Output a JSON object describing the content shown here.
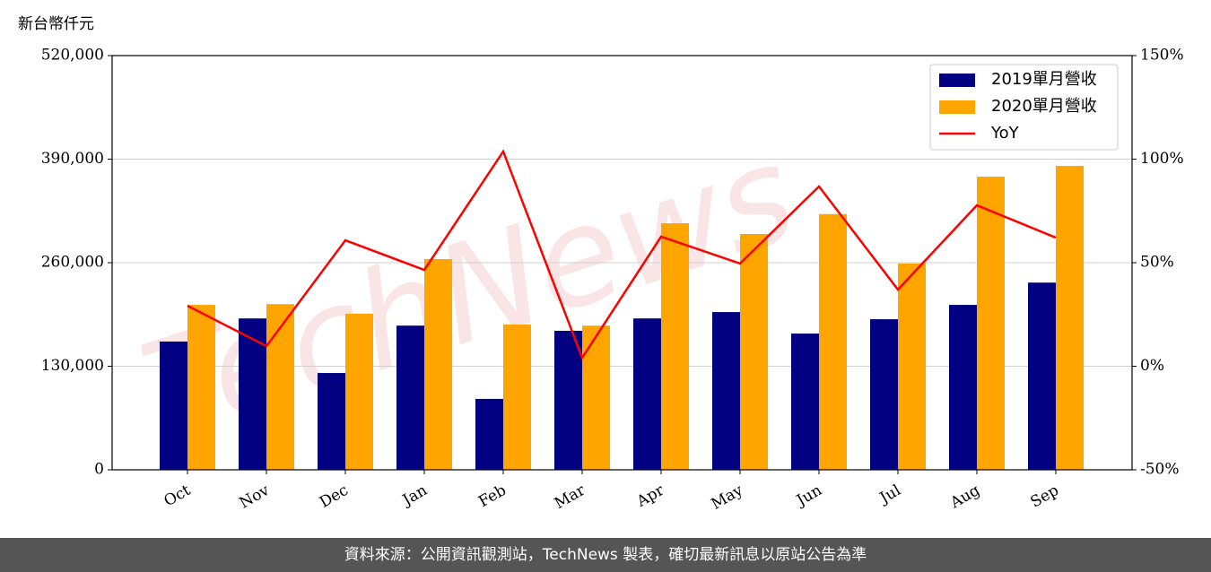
{
  "chart_data": {
    "type": "bar_line",
    "y_axis_label": "新台幣仟元",
    "categories": [
      "Oct",
      "Nov",
      "Dec",
      "Jan",
      "Feb",
      "Mar",
      "Apr",
      "May",
      "Jun",
      "Jul",
      "Aug",
      "Sep"
    ],
    "series": [
      {
        "name": "2019單月營收",
        "color": "#000080",
        "type": "bar",
        "values": [
          161000,
          190000,
          121500,
          181000,
          89000,
          174500,
          190000,
          198000,
          171000,
          189000,
          207000,
          235000
        ]
      },
      {
        "name": "2020單月營收",
        "color": "#ffa500",
        "type": "bar",
        "values": [
          207000,
          208000,
          196000,
          264500,
          182500,
          181000,
          309500,
          296000,
          321000,
          259000,
          368000,
          381500
        ]
      },
      {
        "name": "YoY",
        "color": "#ff0000",
        "type": "line",
        "axis": "y2",
        "values": [
          29.2,
          9.7,
          60.8,
          46.5,
          103.7,
          4.1,
          62.6,
          49.6,
          86.8,
          37,
          77.7,
          62.1
        ]
      }
    ],
    "ylim": [
      0,
      520000
    ],
    "yticks": [
      0,
      {
        "value": 130000,
        "label": "130,000"
      },
      {
        "value": 260000,
        "label": "260,000"
      },
      {
        "value": 390000,
        "label": "390,000"
      },
      {
        "value": 520000,
        "label": "520,000"
      }
    ],
    "y2lim": [
      -50,
      150
    ],
    "y2ticks": [
      {
        "value": -50,
        "label": "-50%"
      },
      {
        "value": 0,
        "label": "0%"
      },
      {
        "value": 50,
        "label": "50%"
      },
      {
        "value": 100,
        "label": "100%"
      },
      {
        "value": 150,
        "label": "150%"
      }
    ],
    "grid": true,
    "legend": "upper right",
    "watermark": "TechNews",
    "source": "資料來源：公開資訊觀測站，TechNews 製表，確切最新訊息以原站公告為準"
  }
}
